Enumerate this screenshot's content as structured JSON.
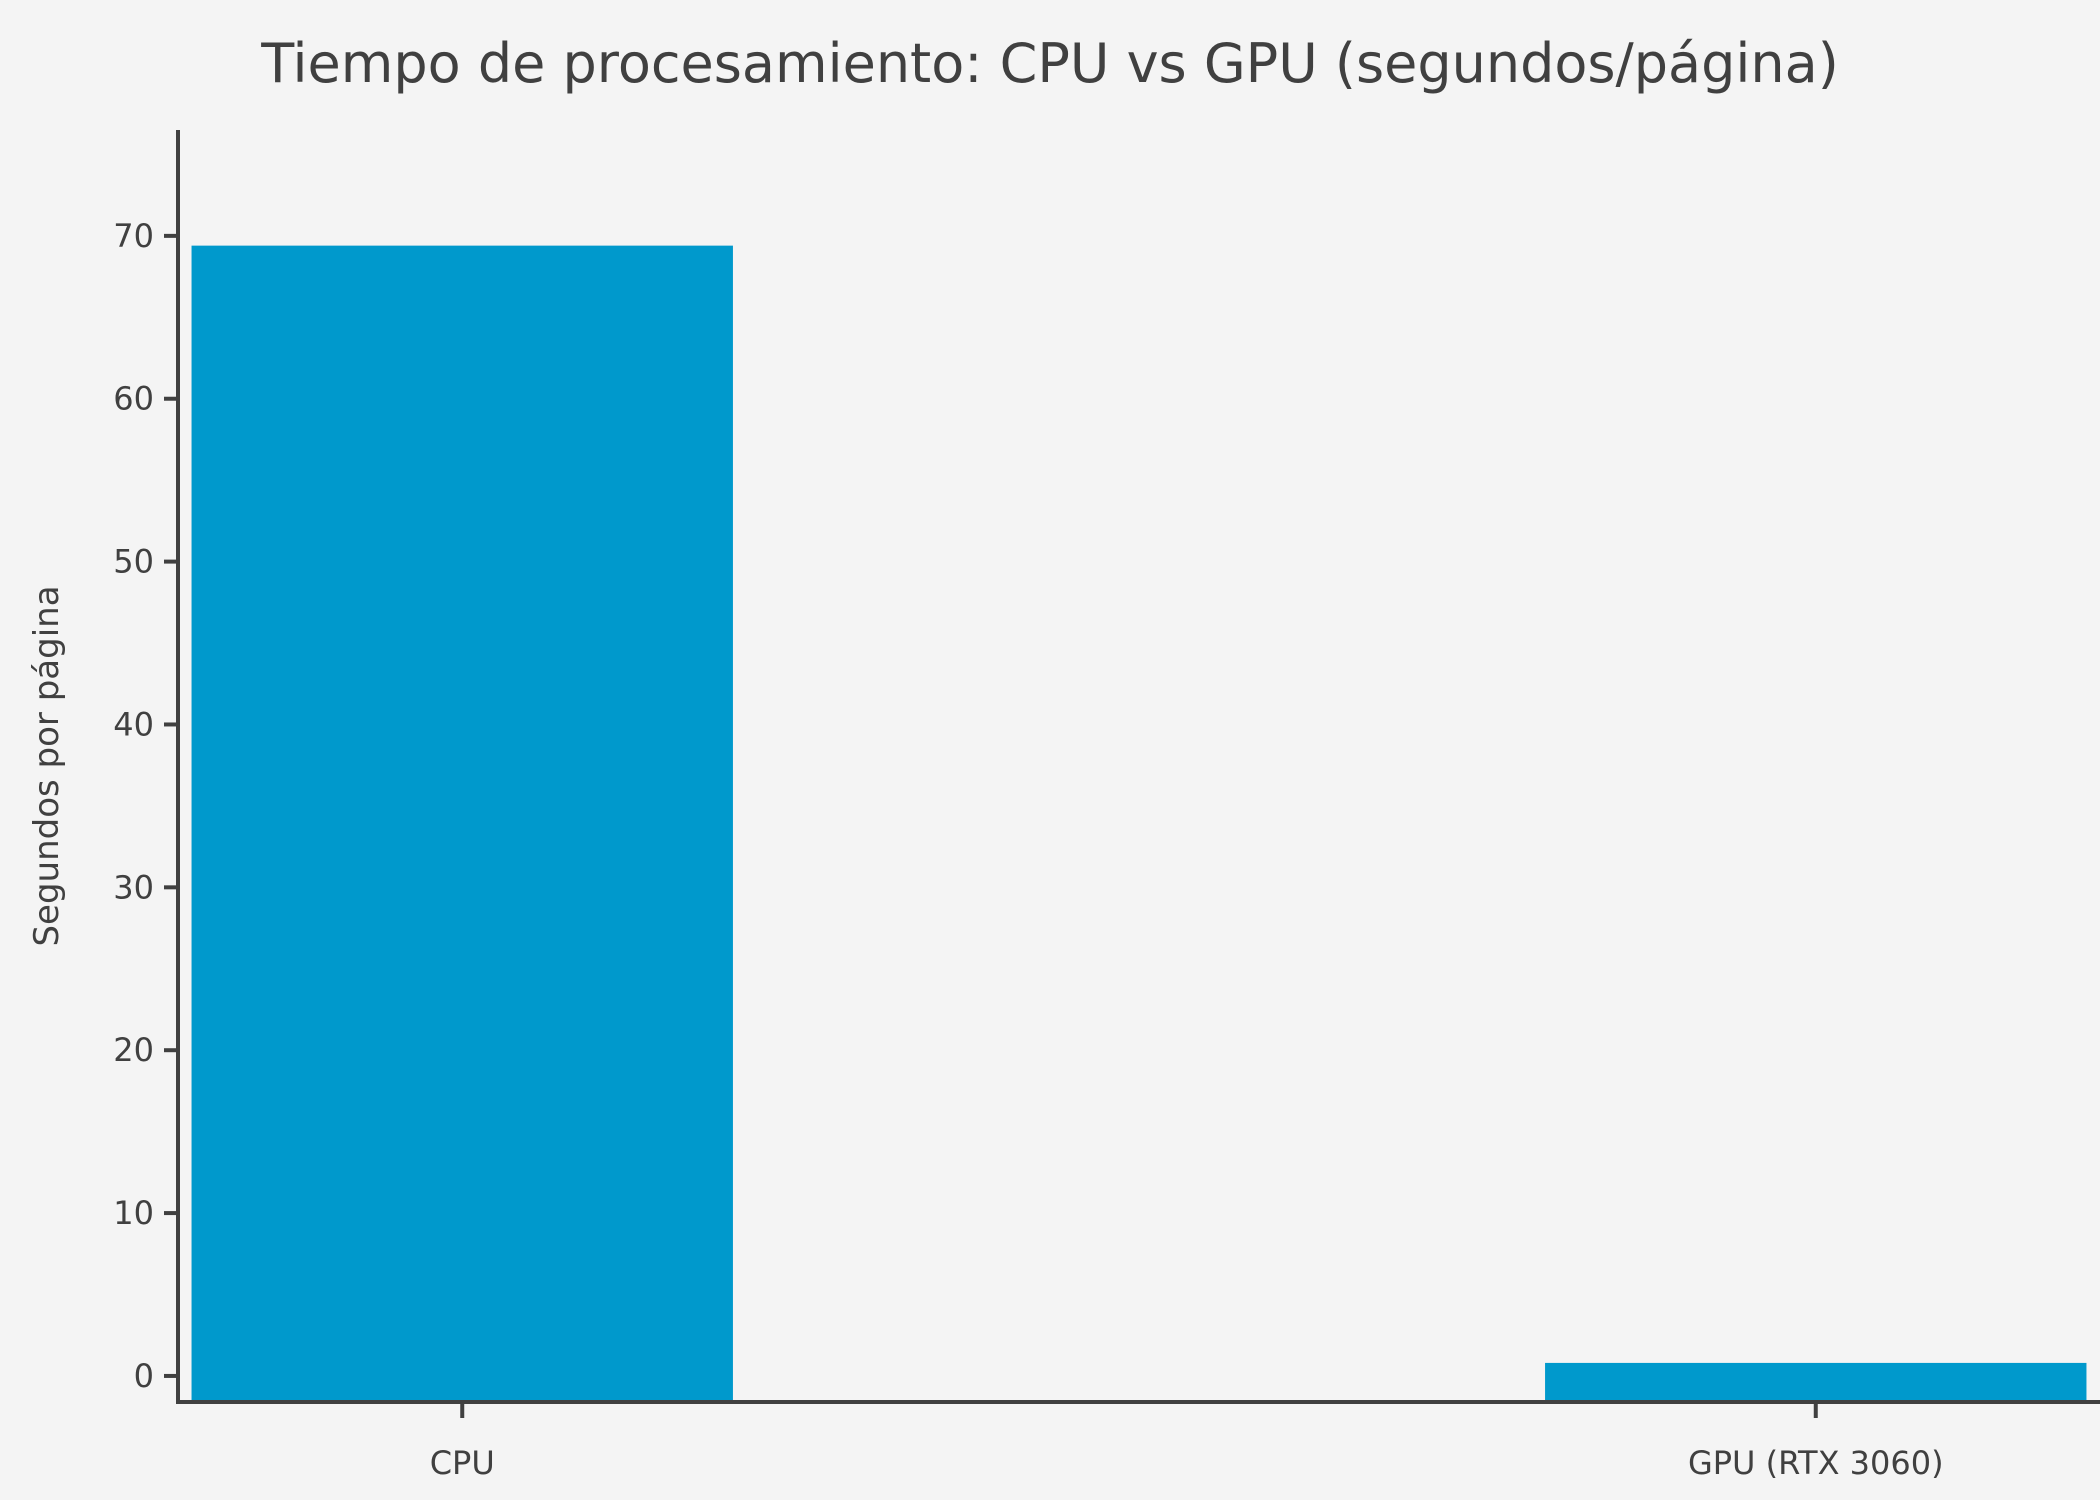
{
  "chart_data": {
    "type": "bar",
    "title": "Tiempo de procesamiento: CPU vs GPU (segundos/página)",
    "xlabel": "",
    "ylabel": "Segundos por página",
    "categories": [
      "CPU",
      "GPU (RTX 3060)"
    ],
    "values": [
      69.4,
      0.8
    ],
    "ylim": [
      -1.6,
      76.5
    ],
    "xlim": [
      -0.21,
      1.21
    ],
    "yticks": [
      0,
      10,
      20,
      30,
      40,
      50,
      60,
      70
    ],
    "bar_width": 0.4,
    "grid": false,
    "legend": "none",
    "colors": {
      "bar": "#0099cc",
      "axis": "#404040",
      "background": "#f4f4f4",
      "text": "#404040"
    }
  }
}
